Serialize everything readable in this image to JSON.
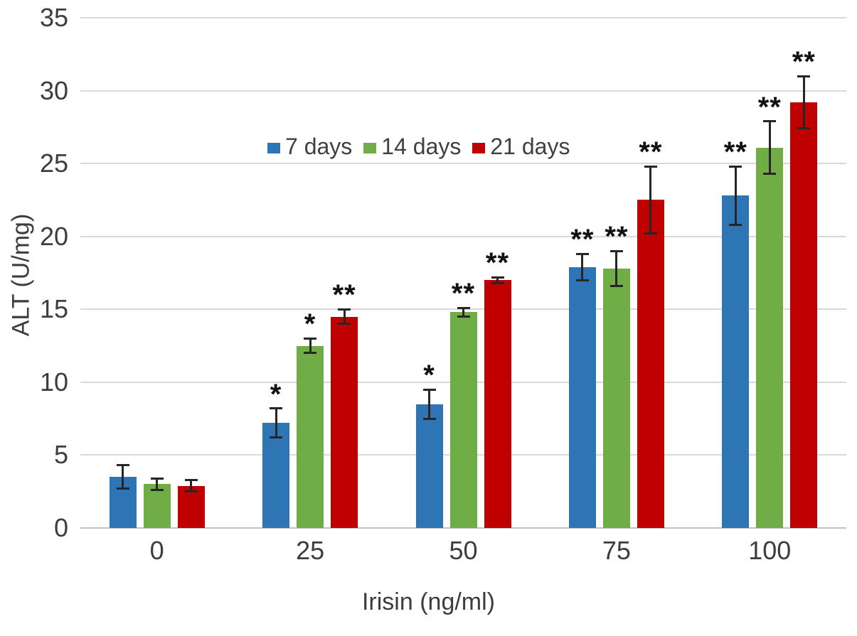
{
  "chart_data": {
    "type": "bar",
    "title": "",
    "xlabel": "Irisin (ng/ml)",
    "ylabel": "ALT (U/mg)",
    "categories": [
      "0",
      "25",
      "50",
      "75",
      "100"
    ],
    "ylim": [
      0,
      35
    ],
    "yticks": [
      0,
      5,
      10,
      15,
      20,
      25,
      30,
      35
    ],
    "grid": true,
    "legend_position": "inside-upper-center",
    "background_color": "#ffffff",
    "grid_color": "#d9d9d9",
    "text_color": "#3d3d3d",
    "error_bar_color": "#262626",
    "series": [
      {
        "name": "7 days",
        "color": "#2E75B6",
        "values": [
          3.5,
          7.2,
          8.5,
          17.9,
          22.8
        ],
        "errors": [
          0.8,
          1.0,
          1.0,
          0.9,
          2.0
        ],
        "annotations": [
          "",
          "*",
          "*",
          "**",
          "**"
        ]
      },
      {
        "name": "14 days",
        "color": "#70AD47",
        "values": [
          3.0,
          12.5,
          14.8,
          17.8,
          26.1
        ],
        "errors": [
          0.4,
          0.5,
          0.3,
          1.2,
          1.8
        ],
        "annotations": [
          "",
          "*",
          "**",
          "**",
          "**"
        ]
      },
      {
        "name": "21 days",
        "color": "#C00000",
        "values": [
          2.9,
          14.5,
          17.0,
          22.5,
          29.2
        ],
        "errors": [
          0.4,
          0.5,
          0.2,
          2.3,
          1.8
        ],
        "annotations": [
          "",
          "**",
          "**",
          "**",
          "**"
        ]
      }
    ]
  }
}
